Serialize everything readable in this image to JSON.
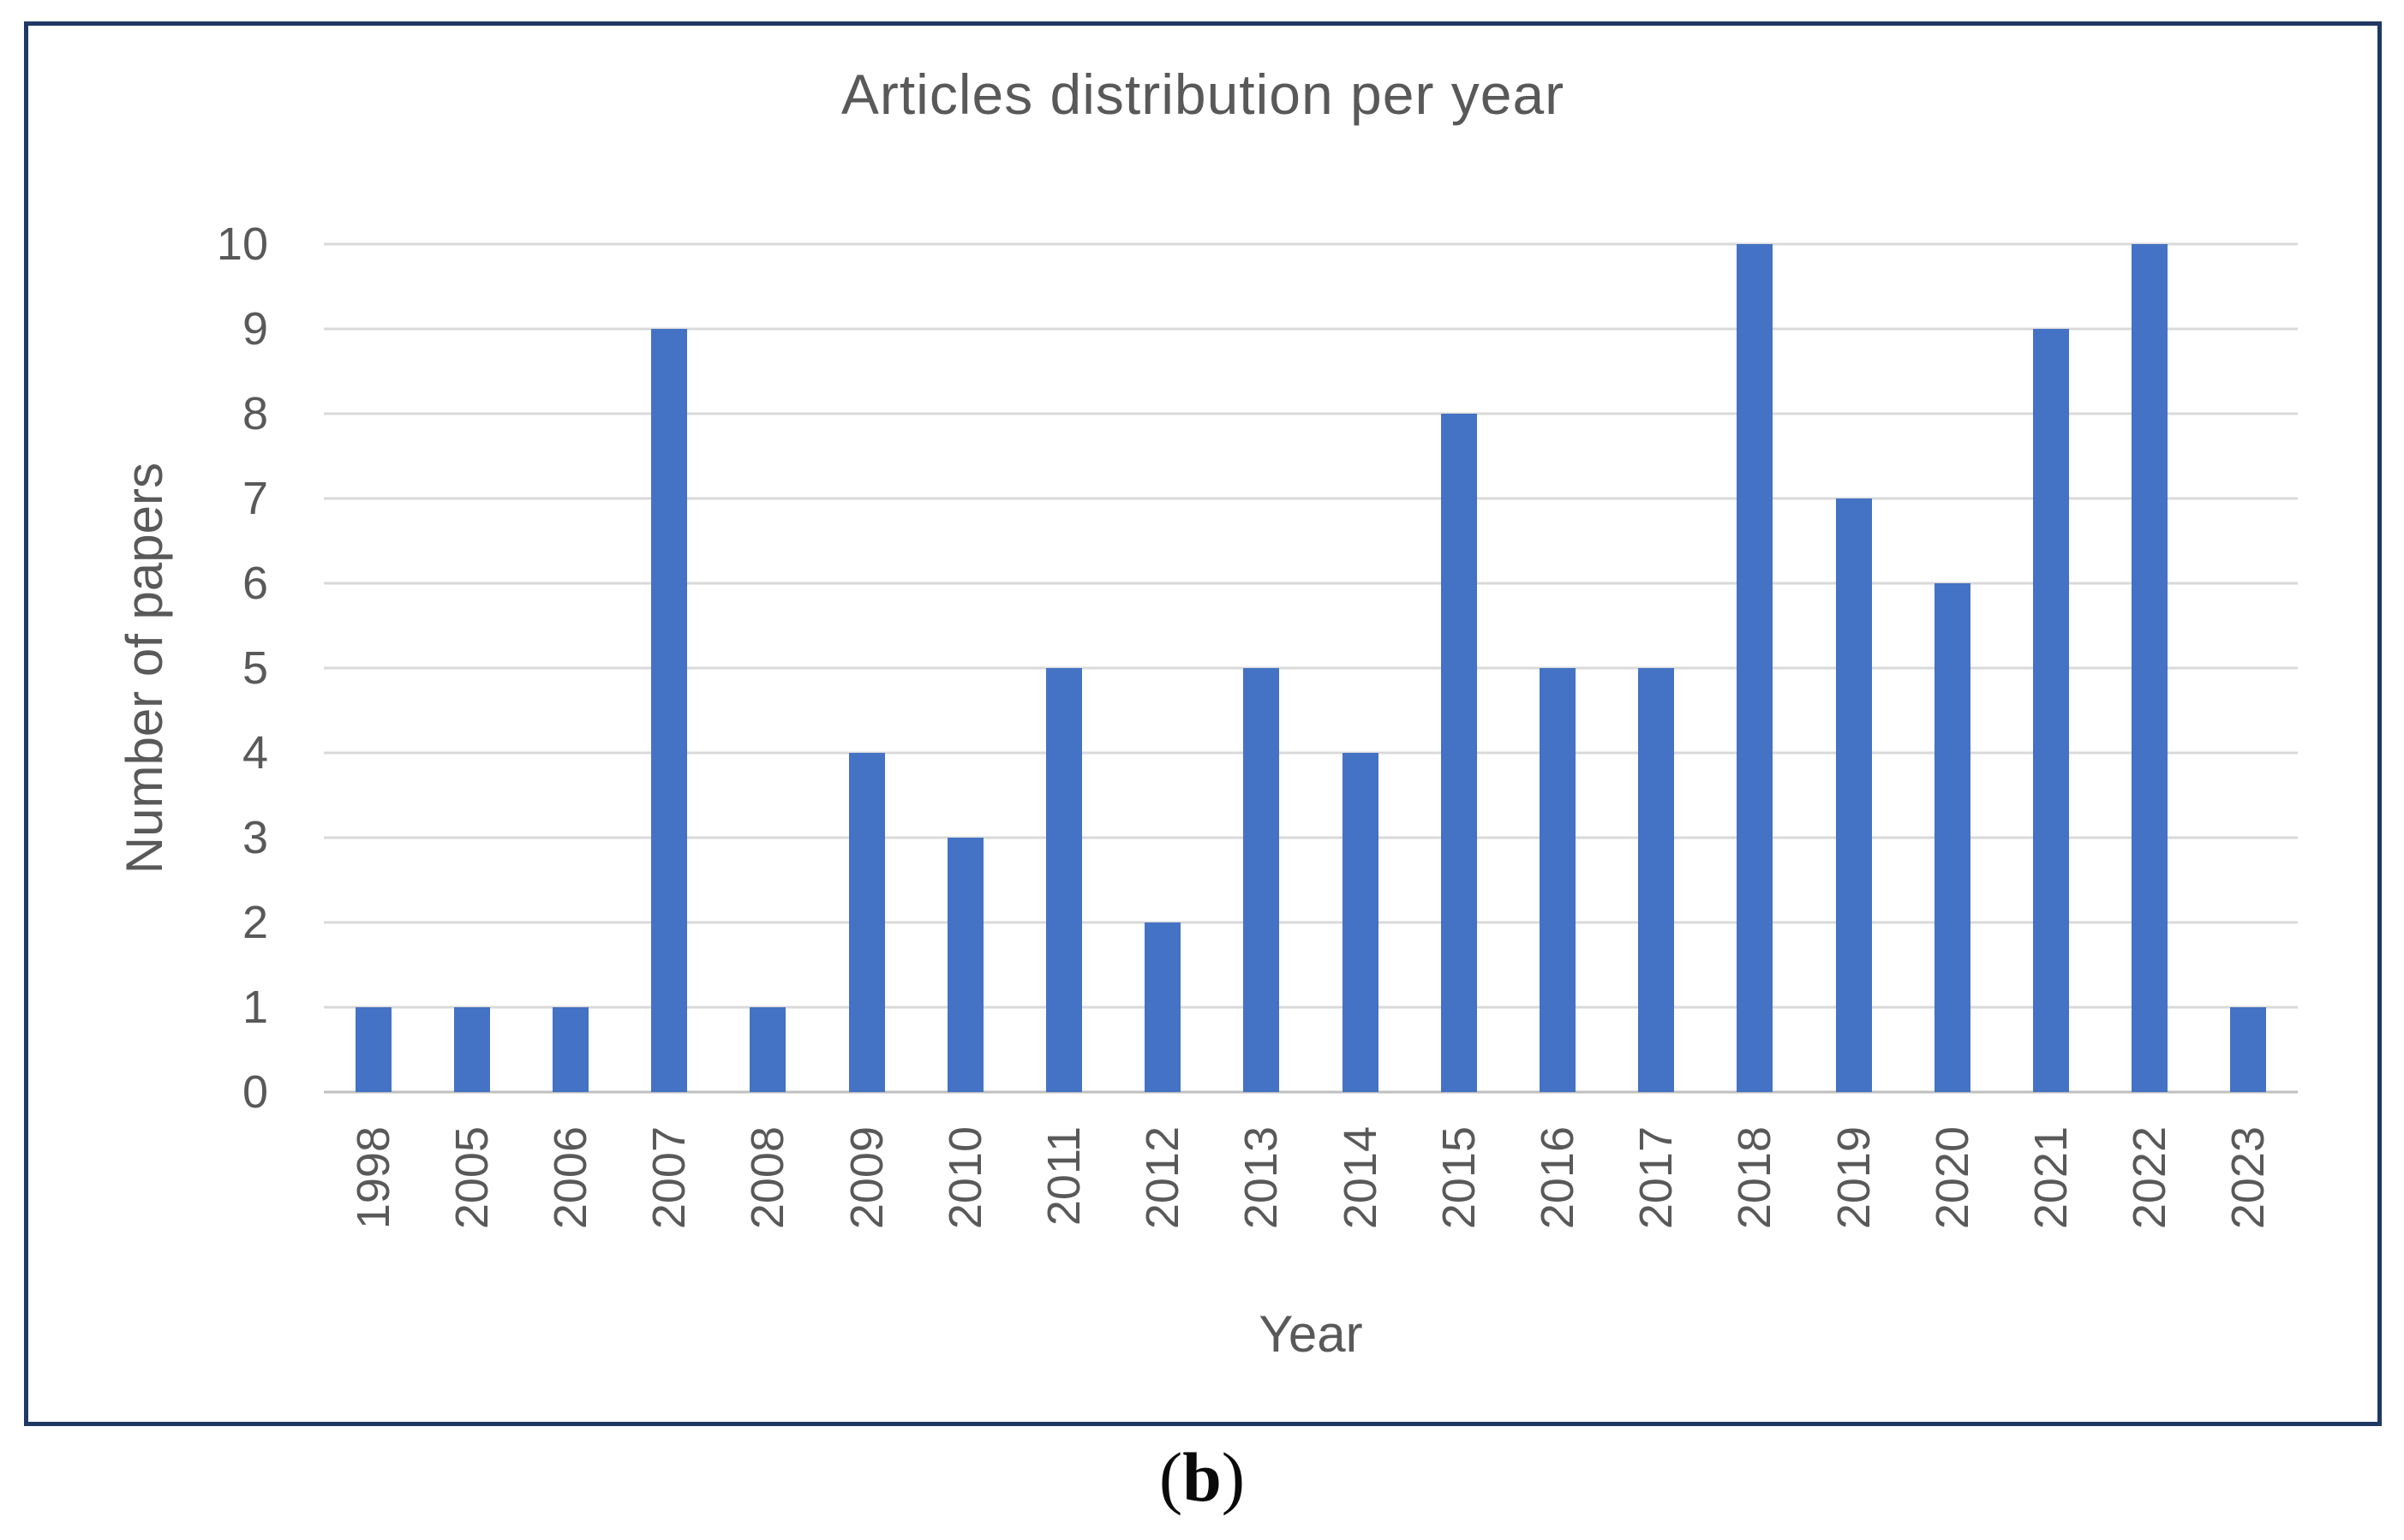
{
  "figure": {
    "caption_open": "(",
    "caption_letter": "b",
    "caption_close": ")"
  },
  "chart_data": {
    "type": "bar",
    "title": "Articles distribution per year",
    "xlabel": "Year",
    "ylabel": "Number of papers",
    "categories": [
      "1998",
      "2005",
      "2006",
      "2007",
      "2008",
      "2009",
      "2010",
      "2011",
      "2012",
      "2013",
      "2014",
      "2015",
      "2016",
      "2017",
      "2018",
      "2019",
      "2020",
      "2021",
      "2022",
      "2023"
    ],
    "values": [
      1,
      1,
      1,
      9,
      1,
      4,
      3,
      5,
      2,
      5,
      4,
      8,
      5,
      5,
      10,
      7,
      6,
      9,
      10,
      1
    ],
    "ylim": [
      0,
      10
    ],
    "ytick_step": 1,
    "grid": "horizontal-gridlines",
    "legend_position": "none",
    "bar_color": "#4472C4"
  },
  "colors": {
    "bar": "#4472C4",
    "gridline": "#D9D9D9",
    "baseline": "#BFBFBF",
    "text": "#595959",
    "frame_border": "#1F3864",
    "background": "#FFFFFF"
  }
}
